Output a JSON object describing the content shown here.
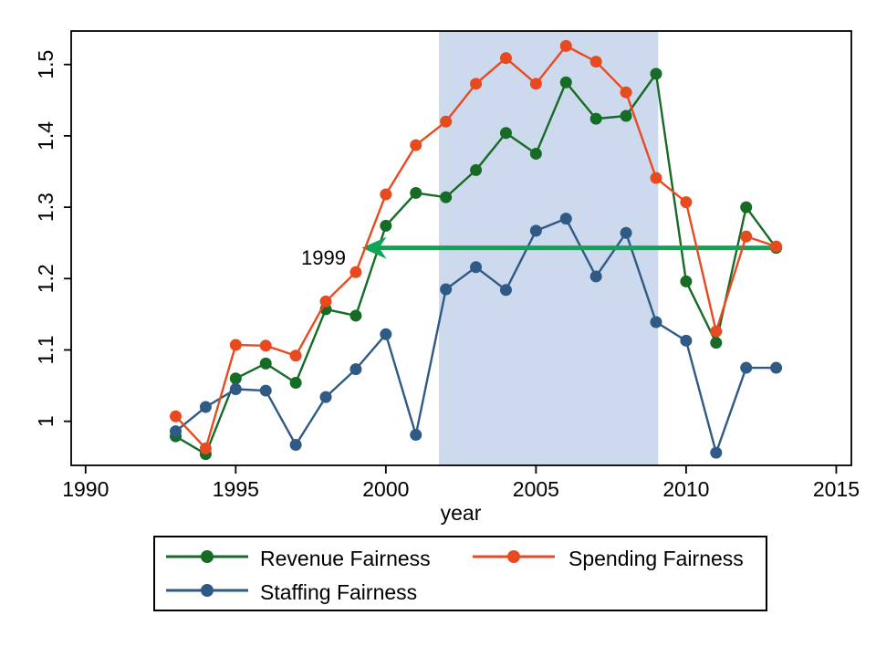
{
  "chart_data": {
    "type": "line",
    "title": "",
    "xlabel": "year",
    "ylabel": "",
    "grid": false,
    "legend_position": "bottom-center",
    "xlim": [
      1989.5,
      2015.5
    ],
    "ylim": [
      0.938,
      1.547
    ],
    "x_ticks": [
      1990,
      1995,
      2000,
      2005,
      2010,
      2015
    ],
    "x_tick_labels": [
      "1990",
      "1995",
      "2000",
      "2005",
      "2010",
      "2015"
    ],
    "y_ticks": [
      1,
      1.1,
      1.2,
      1.3,
      1.4,
      1.5
    ],
    "y_tick_labels": [
      "1",
      "1.1",
      "1.2",
      "1.3",
      "1.4",
      "1.5"
    ],
    "x": [
      1993,
      1994,
      1995,
      1996,
      1997,
      1998,
      1999,
      2000,
      2001,
      2002,
      2003,
      2004,
      2005,
      2006,
      2007,
      2008,
      2009,
      2010,
      2011,
      2012,
      2013
    ],
    "series": [
      {
        "name": "Revenue Fairness",
        "color": "#166b26",
        "values": [
          0.979,
          0.954,
          1.06,
          1.081,
          1.054,
          1.157,
          1.148,
          1.274,
          1.32,
          1.314,
          1.352,
          1.404,
          1.375,
          1.475,
          1.424,
          1.428,
          1.487,
          1.196,
          1.11,
          1.3,
          1.243
        ]
      },
      {
        "name": "Spending Fairness",
        "color": "#e84a20",
        "values": [
          1.007,
          0.962,
          1.107,
          1.106,
          1.092,
          1.168,
          1.209,
          1.318,
          1.387,
          1.42,
          1.473,
          1.509,
          1.473,
          1.526,
          1.504,
          1.461,
          1.341,
          1.307,
          1.126,
          1.259,
          1.245
        ]
      },
      {
        "name": "Staffing Fairness",
        "color": "#2e5a85",
        "values": [
          0.986,
          1.02,
          1.045,
          1.043,
          0.967,
          1.034,
          1.073,
          1.122,
          0.981,
          1.185,
          1.216,
          1.184,
          1.267,
          1.284,
          1.203,
          1.264,
          1.139,
          1.113,
          0.956,
          1.075,
          1.075
        ]
      }
    ],
    "shaded_region": {
      "x_from": 2001.77,
      "x_to": 2009.07,
      "color": "#cdd9ec"
    },
    "annotation": {
      "label": "1999",
      "arrow_color": "#10a455",
      "y": 1.243,
      "x_from": 2013,
      "x_to": 1999.2
    }
  }
}
